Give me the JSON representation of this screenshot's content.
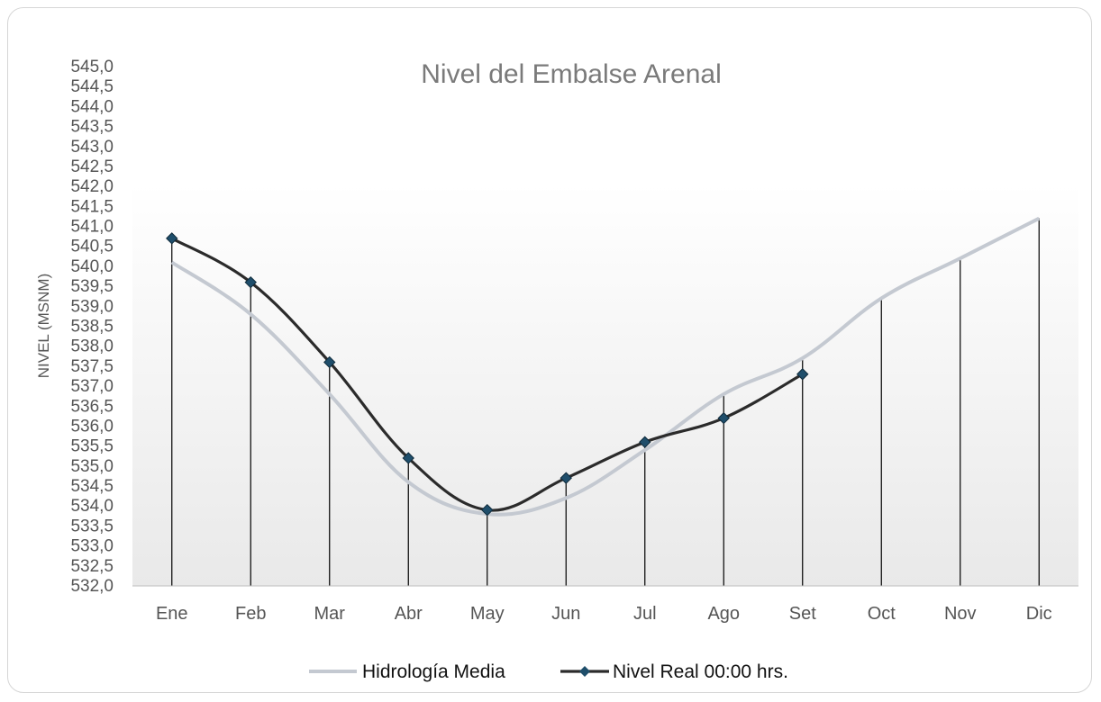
{
  "chart_data": {
    "type": "line",
    "title": "Nivel del Embalse Arenal",
    "xlabel": "",
    "ylabel": "NIVEL (MSNM)",
    "categories": [
      "Ene",
      "Feb",
      "Mar",
      "Abr",
      "May",
      "Jun",
      "Jul",
      "Ago",
      "Set",
      "Oct",
      "Nov",
      "Dic"
    ],
    "ylim": [
      532.0,
      545.0
    ],
    "ytick_step": 0.5,
    "ytick_labels": [
      "532,0",
      "532,5",
      "533,0",
      "533,5",
      "534,0",
      "534,5",
      "535,0",
      "535,5",
      "536,0",
      "536,5",
      "537,0",
      "537,5",
      "538,0",
      "538,5",
      "539,0",
      "539,5",
      "540,0",
      "540,5",
      "541,0",
      "541,5",
      "542,0",
      "542,5",
      "543,0",
      "543,5",
      "544,0",
      "544,5",
      "545,0"
    ],
    "series": [
      {
        "name": "Hidrología Media",
        "color": "#c4c9d1",
        "marker": "none",
        "values": [
          540.1,
          538.8,
          536.8,
          534.6,
          533.8,
          534.2,
          535.4,
          536.8,
          537.7,
          539.2,
          540.2,
          541.2
        ]
      },
      {
        "name": "Nivel Real 00:00 hrs.",
        "color": "#2b2b2b",
        "marker": "diamond",
        "marker_color": "#1f4e6b",
        "values": [
          540.7,
          539.6,
          537.6,
          535.2,
          533.9,
          534.7,
          535.6,
          536.2,
          537.3,
          null,
          null,
          null
        ]
      }
    ],
    "drop_lines": true,
    "grid": false,
    "legend_position": "bottom",
    "plot_background": "gradient-white-to-light-gray"
  }
}
